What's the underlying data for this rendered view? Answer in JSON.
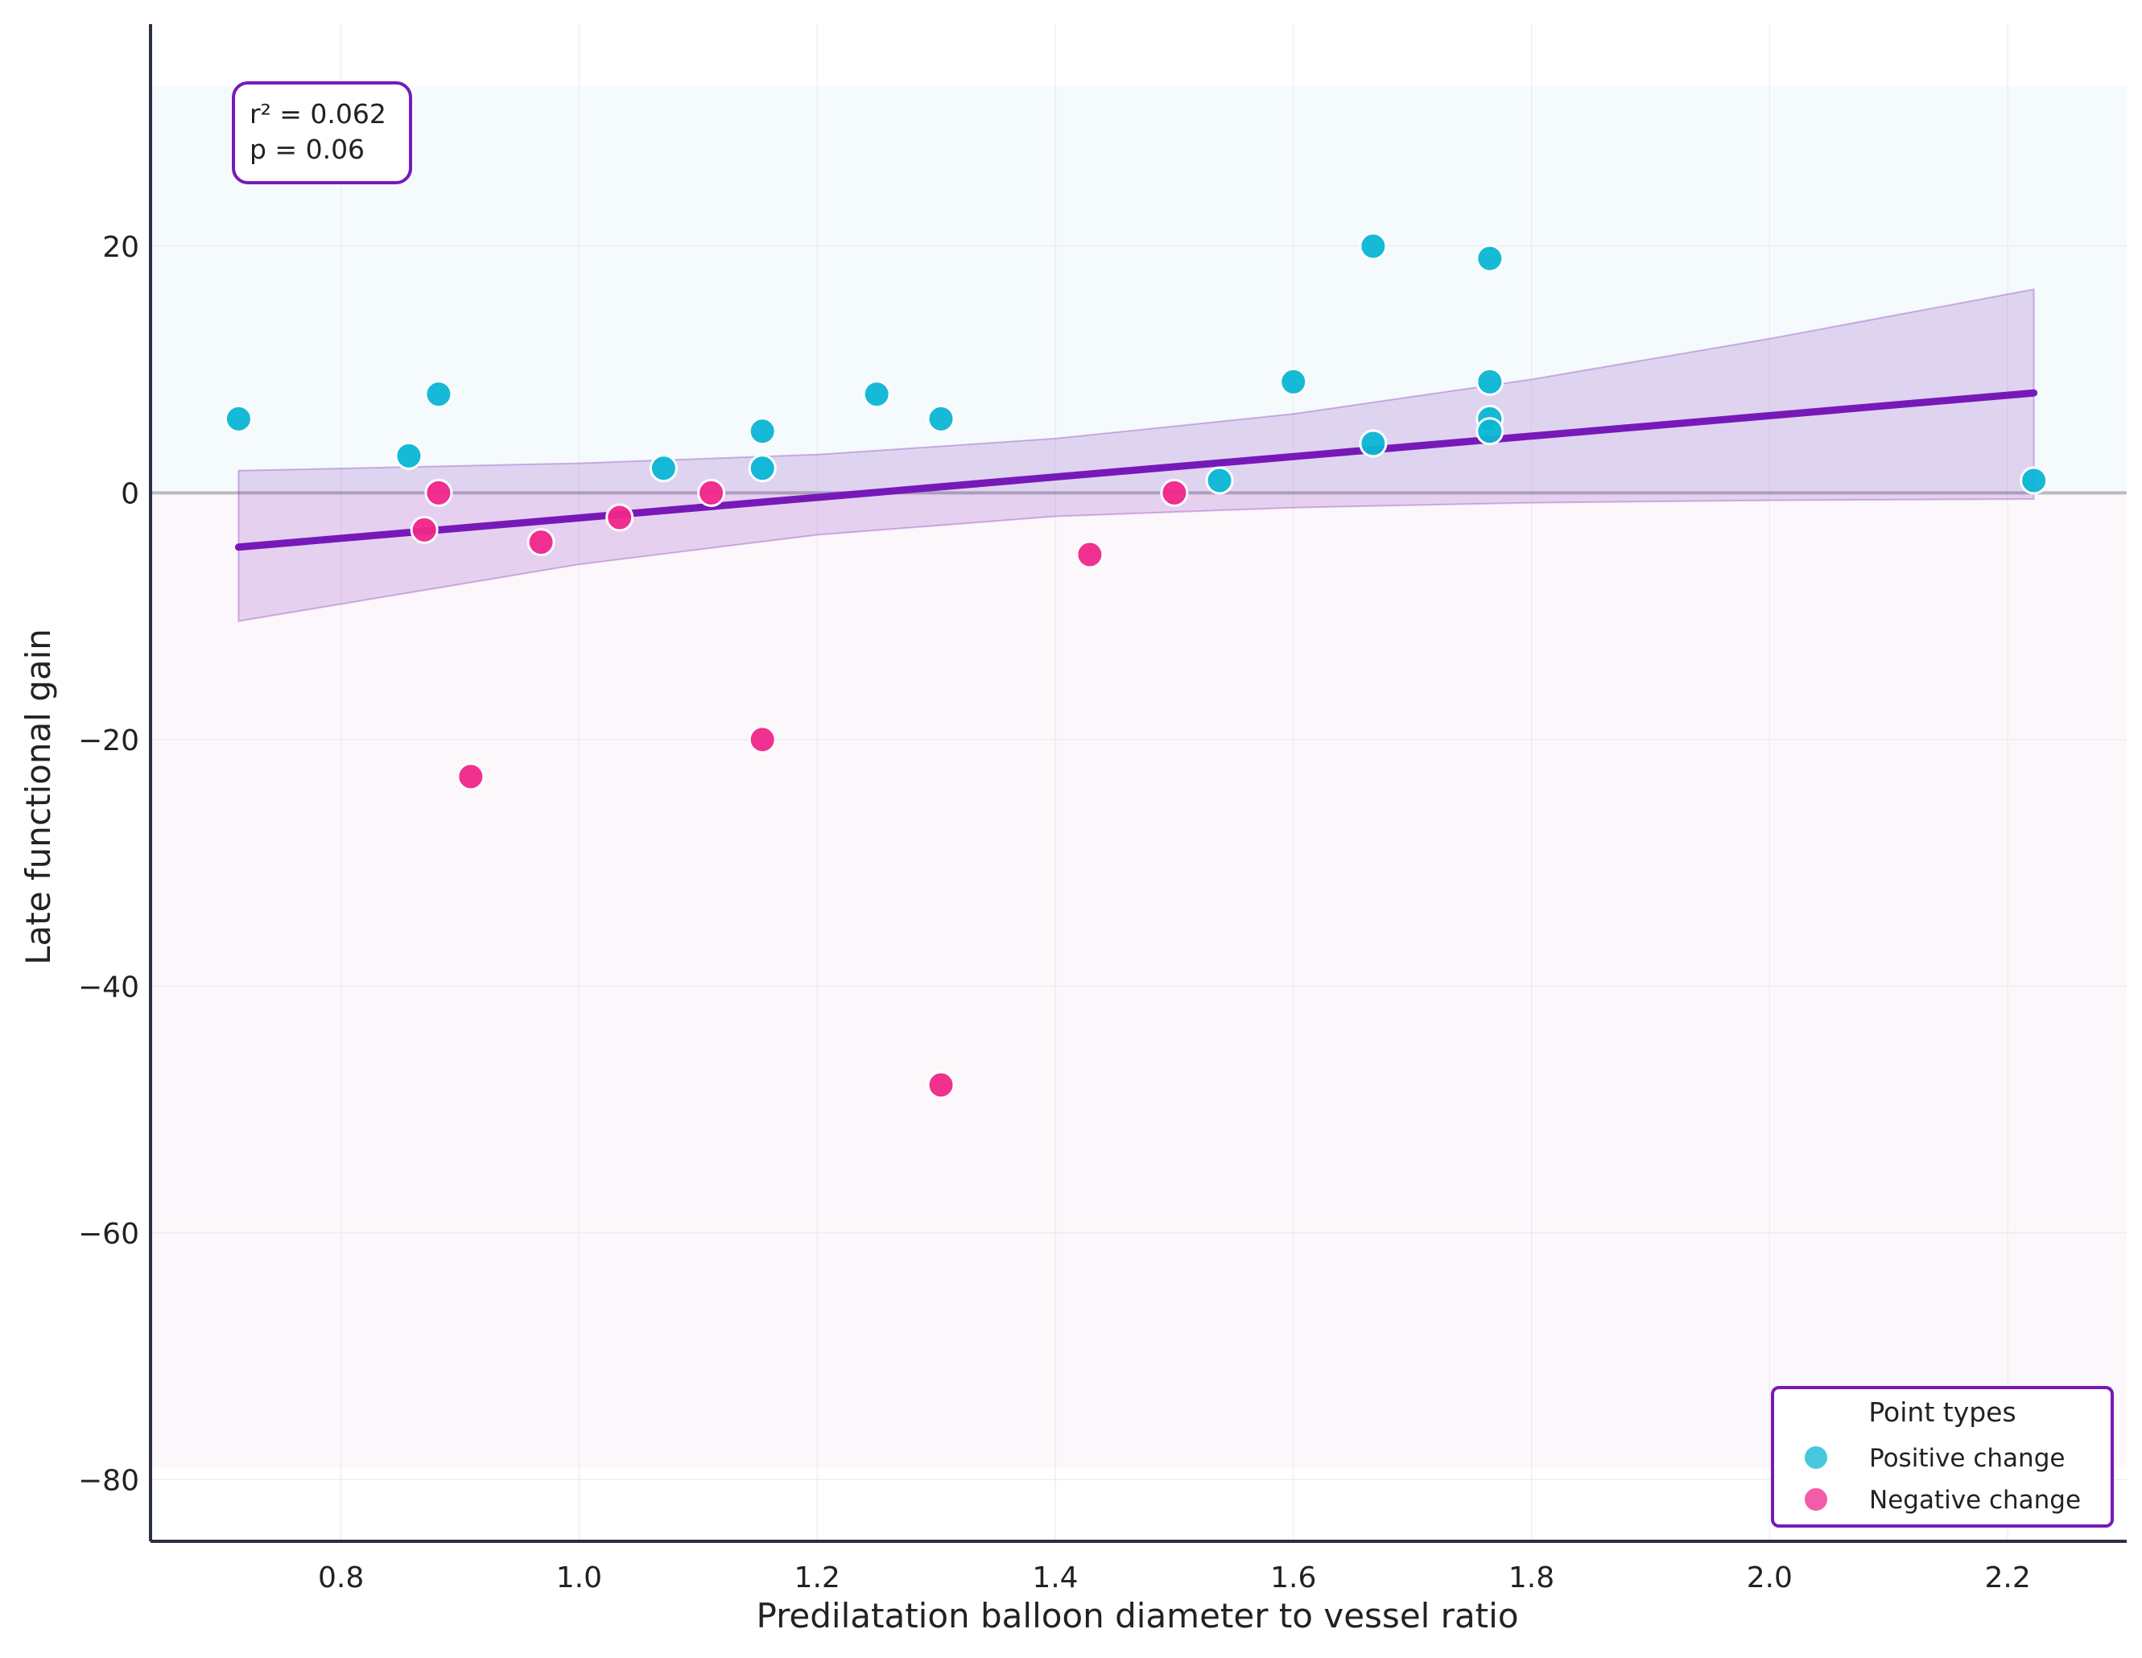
{
  "chart_data": {
    "type": "scatter",
    "xlabel": "Predilatation balloon diameter to vessel ratio",
    "ylabel": "Late functional gain",
    "xlim": [
      0.64,
      2.3
    ],
    "ylim": [
      -85,
      38
    ],
    "x_ticks": [
      "0.8",
      "1.0",
      "1.2",
      "1.4",
      "1.6",
      "1.8",
      "2.0",
      "2.2"
    ],
    "y_ticks": [
      "20",
      "0",
      "−20",
      "−40",
      "−60",
      "−80"
    ],
    "x_tick_values": [
      0.8,
      1.0,
      1.2,
      1.4,
      1.6,
      1.8,
      2.0,
      2.2
    ],
    "y_tick_values": [
      20,
      0,
      -20,
      -40,
      -60,
      -80
    ],
    "grid": true,
    "zero_line": 0,
    "background_bands": [
      {
        "from": 0,
        "to": 33,
        "color": "#f5fafc"
      },
      {
        "from": -79,
        "to": 0,
        "color": "#fcf7fa"
      }
    ],
    "stats": {
      "r2_text": "r² = 0.062",
      "p_text": "p = 0.06"
    },
    "legend": {
      "title": "Point types",
      "position": "lower-right"
    },
    "series": [
      {
        "name": "Positive change",
        "color": "#0ab6d4",
        "points": [
          [
            0.714,
            6
          ],
          [
            0.857,
            3
          ],
          [
            0.882,
            8
          ],
          [
            1.071,
            2
          ],
          [
            1.154,
            5
          ],
          [
            1.154,
            2
          ],
          [
            1.25,
            8
          ],
          [
            1.304,
            6
          ],
          [
            1.538,
            1
          ],
          [
            1.6,
            9
          ],
          [
            1.667,
            20
          ],
          [
            1.667,
            4
          ],
          [
            1.765,
            19
          ],
          [
            1.765,
            9
          ],
          [
            1.765,
            6
          ],
          [
            1.765,
            5
          ],
          [
            2.222,
            1
          ]
        ]
      },
      {
        "name": "Negative change",
        "color": "#f0268a",
        "points": [
          [
            0.87,
            -3
          ],
          [
            0.882,
            0
          ],
          [
            0.909,
            -23
          ],
          [
            0.968,
            -4
          ],
          [
            1.034,
            -2
          ],
          [
            1.111,
            0
          ],
          [
            1.154,
            -20
          ],
          [
            1.304,
            -48
          ],
          [
            1.429,
            -5
          ],
          [
            1.5,
            0
          ]
        ]
      }
    ],
    "regression": {
      "color": "#7719b8",
      "line": [
        [
          0.714,
          -4.4
        ],
        [
          2.222,
          8.1
        ]
      ],
      "ci_upper": [
        [
          0.714,
          1.8
        ],
        [
          1.0,
          2.4
        ],
        [
          1.2,
          3.1
        ],
        [
          1.4,
          4.4
        ],
        [
          1.6,
          6.4
        ],
        [
          1.8,
          9.2
        ],
        [
          2.0,
          12.5
        ],
        [
          2.222,
          16.5
        ]
      ],
      "ci_lower": [
        [
          0.714,
          -10.4
        ],
        [
          1.0,
          -5.8
        ],
        [
          1.2,
          -3.4
        ],
        [
          1.4,
          -1.9
        ],
        [
          1.6,
          -1.2
        ],
        [
          1.8,
          -0.8
        ],
        [
          2.0,
          -0.6
        ],
        [
          2.222,
          -0.5
        ]
      ]
    }
  }
}
